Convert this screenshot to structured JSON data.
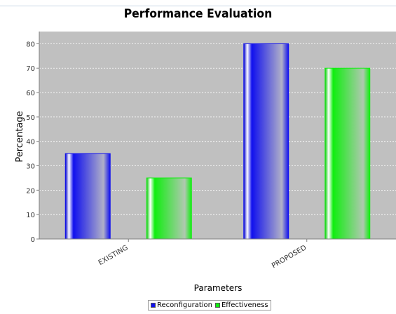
{
  "chart_data": {
    "type": "bar",
    "title": "Performance Evaluation",
    "xlabel": "Parameters",
    "ylabel": "Percentage",
    "categories": [
      "EXISTING",
      "PROPOSED"
    ],
    "series": [
      {
        "name": "Reconfiguration",
        "values": [
          35,
          80
        ],
        "color": "#1010ee"
      },
      {
        "name": "Effectiveness",
        "values": [
          25,
          70
        ],
        "color": "#10ee10"
      }
    ],
    "ylim": [
      0,
      85
    ],
    "yticks": [
      0,
      10,
      20,
      30,
      40,
      50,
      60,
      70,
      80
    ],
    "grid": true,
    "legend_position": "bottom",
    "plot_background": "#c0c0c0"
  }
}
